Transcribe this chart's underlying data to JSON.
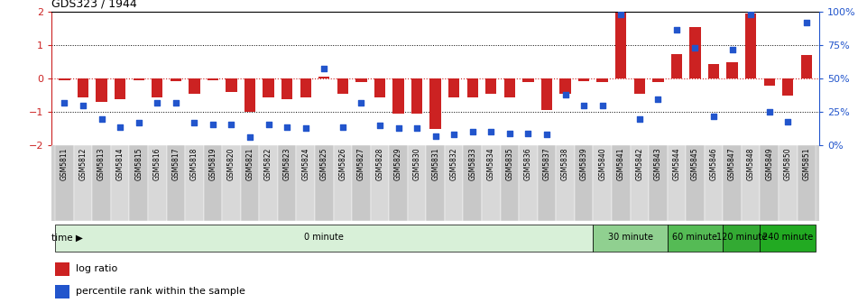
{
  "title": "GDS323 / 1944",
  "samples": [
    "GSM5811",
    "GSM5812",
    "GSM5813",
    "GSM5814",
    "GSM5815",
    "GSM5816",
    "GSM5817",
    "GSM5818",
    "GSM5819",
    "GSM5820",
    "GSM5821",
    "GSM5822",
    "GSM5823",
    "GSM5824",
    "GSM5825",
    "GSM5826",
    "GSM5827",
    "GSM5828",
    "GSM5829",
    "GSM5830",
    "GSM5831",
    "GSM5832",
    "GSM5833",
    "GSM5834",
    "GSM5835",
    "GSM5836",
    "GSM5837",
    "GSM5838",
    "GSM5839",
    "GSM5840",
    "GSM5841",
    "GSM5842",
    "GSM5843",
    "GSM5844",
    "GSM5845",
    "GSM5846",
    "GSM5847",
    "GSM5848",
    "GSM5849",
    "GSM5850",
    "GSM5851"
  ],
  "log_ratio": [
    -0.05,
    -0.55,
    -0.7,
    -0.62,
    -0.05,
    -0.55,
    -0.08,
    -0.45,
    -0.05,
    -0.4,
    -1.0,
    -0.55,
    -0.6,
    -0.55,
    0.07,
    -0.45,
    -0.1,
    -0.55,
    -1.05,
    -1.05,
    -1.5,
    -0.55,
    -0.55,
    -0.45,
    -0.55,
    -0.1,
    -0.95,
    -0.45,
    -0.08,
    -0.1,
    1.98,
    -0.45,
    -0.1,
    0.75,
    1.55,
    0.45,
    0.5,
    1.95,
    -0.2,
    -0.5,
    0.7
  ],
  "percentile": [
    32,
    30,
    20,
    14,
    17,
    32,
    32,
    17,
    16,
    16,
    6,
    16,
    14,
    13,
    58,
    14,
    32,
    15,
    13,
    13,
    7,
    8,
    10,
    10,
    9,
    9,
    8,
    38,
    30,
    30,
    98,
    20,
    35,
    87,
    73,
    22,
    72,
    98,
    25,
    18,
    92
  ],
  "time_groups": [
    {
      "label": "0 minute",
      "start": 0,
      "end": 29,
      "color": "#d8f0d8"
    },
    {
      "label": "30 minute",
      "start": 29,
      "end": 33,
      "color": "#90d090"
    },
    {
      "label": "60 minute",
      "start": 33,
      "end": 36,
      "color": "#55bb55"
    },
    {
      "label": "120 minute",
      "start": 36,
      "end": 38,
      "color": "#33aa33"
    },
    {
      "label": "240 minute",
      "start": 38,
      "end": 41,
      "color": "#22aa22"
    }
  ],
  "bar_color": "#cc2222",
  "dot_color": "#2255cc",
  "ylim": [
    -2,
    2
  ],
  "y2lim": [
    0,
    100
  ],
  "legend_items": [
    {
      "label": "log ratio",
      "color": "#cc2222"
    },
    {
      "label": "percentile rank within the sample",
      "color": "#2255cc"
    }
  ],
  "label_bg_color": "#d0d0d0",
  "time_arrow_label": "time ▶"
}
